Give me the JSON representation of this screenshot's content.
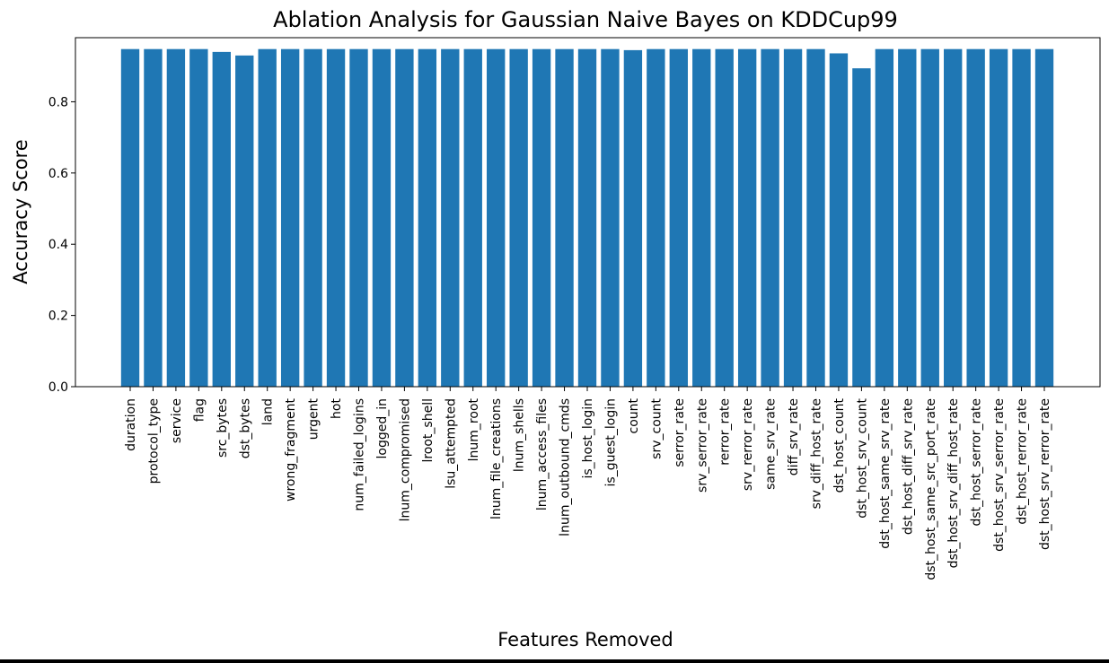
{
  "chart_data": {
    "type": "bar",
    "title": "Ablation Analysis for Gaussian Naive Bayes on KDDCup99",
    "xlabel": "Features Removed",
    "ylabel": "Accuracy Score",
    "ylim": [
      0,
      0.98
    ],
    "yticks": [
      "0.0",
      "0.2",
      "0.4",
      "0.6",
      "0.8"
    ],
    "ytick_values": [
      0.0,
      0.2,
      0.4,
      0.6,
      0.8
    ],
    "grid": false,
    "bar_color": "#1f77b4",
    "categories": [
      "duration",
      "protocol_type",
      "service",
      "flag",
      "src_bytes",
      "dst_bytes",
      "land",
      "wrong_fragment",
      "urgent",
      "hot",
      "num_failed_logins",
      "logged_in",
      "lnum_compromised",
      "lroot_shell",
      "lsu_attempted",
      "lnum_root",
      "lnum_file_creations",
      "lnum_shells",
      "lnum_access_files",
      "lnum_outbound_cmds",
      "is_host_login",
      "is_guest_login",
      "count",
      "srv_count",
      "serror_rate",
      "srv_serror_rate",
      "rerror_rate",
      "srv_rerror_rate",
      "same_srv_rate",
      "diff_srv_rate",
      "srv_diff_host_rate",
      "dst_host_count",
      "dst_host_srv_count",
      "dst_host_same_srv_rate",
      "dst_host_diff_srv_rate",
      "dst_host_same_src_port_rate",
      "dst_host_srv_diff_host_rate",
      "dst_host_serror_rate",
      "dst_host_srv_serror_rate",
      "dst_host_rerror_rate",
      "dst_host_srv_rerror_rate"
    ],
    "values": [
      0.948,
      0.948,
      0.948,
      0.948,
      0.94,
      0.93,
      0.948,
      0.948,
      0.948,
      0.948,
      0.948,
      0.948,
      0.948,
      0.948,
      0.948,
      0.948,
      0.948,
      0.948,
      0.948,
      0.948,
      0.948,
      0.948,
      0.945,
      0.948,
      0.948,
      0.948,
      0.948,
      0.948,
      0.948,
      0.948,
      0.948,
      0.936,
      0.894,
      0.948,
      0.948,
      0.948,
      0.948,
      0.948,
      0.948,
      0.948,
      0.948
    ]
  }
}
